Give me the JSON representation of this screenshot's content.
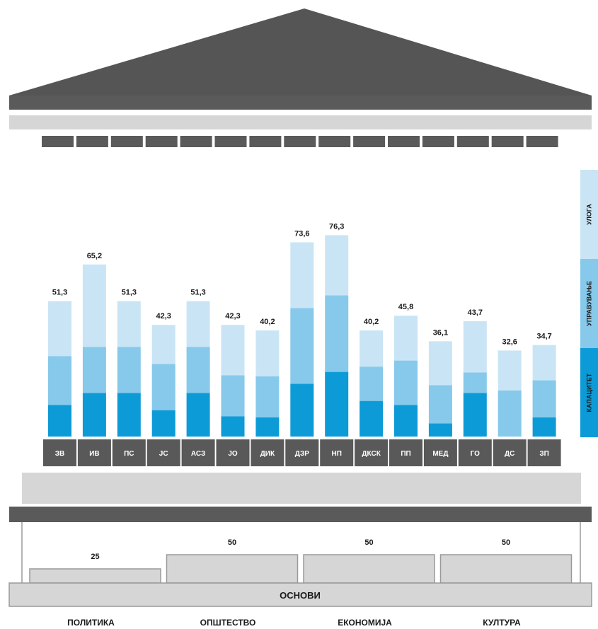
{
  "chart_data": {
    "type": "bar",
    "title": "",
    "xlabel": "",
    "ylabel": "",
    "ylim": [
      0,
      90
    ],
    "categories": [
      "ЗВ",
      "ИВ",
      "ПС",
      "ЈС",
      "АСЗ",
      "ЈО",
      "ДИК",
      "ДЗР",
      "НП",
      "ДКСК",
      "ПП",
      "МЕД",
      "ГО",
      "ДС",
      "ЗП"
    ],
    "totals": [
      "51,3",
      "65,2",
      "51,3",
      "42,3",
      "51,3",
      "42,3",
      "40,2",
      "73,6",
      "76,3",
      "40,2",
      "45,8",
      "36,1",
      "43,7",
      "32,6",
      "34,7"
    ],
    "values": [
      51.3,
      65.2,
      51.3,
      42.3,
      51.3,
      42.3,
      40.2,
      73.6,
      76.3,
      40.2,
      45.8,
      36.1,
      43.7,
      32.6,
      34.7
    ],
    "series": [
      {
        "name": "КАПАЦИТЕТ",
        "color": "#0d9bd7",
        "values": [
          12.0,
          16.5,
          16.5,
          10.0,
          16.5,
          7.7,
          7.3,
          20.0,
          24.5,
          13.5,
          12.0,
          5.0,
          16.5,
          0.0,
          7.3
        ]
      },
      {
        "name": "УПРАВУВАЊЕ",
        "color": "#86c9ea",
        "values": [
          18.5,
          17.5,
          17.5,
          17.5,
          17.5,
          15.5,
          15.5,
          28.7,
          29.0,
          13.0,
          16.8,
          14.5,
          7.8,
          17.5,
          14.0
        ]
      },
      {
        "name": "УЛОГА",
        "color": "#c9e5f5",
        "values": [
          20.8,
          31.2,
          17.3,
          14.8,
          17.3,
          19.1,
          17.4,
          24.9,
          22.8,
          13.7,
          17.0,
          16.6,
          19.4,
          15.1,
          13.4
        ]
      }
    ],
    "legend_position": "right",
    "grid": false
  },
  "foundation": {
    "label": "ОСНОВИ",
    "pillars": [
      {
        "name": "ПОЛИТИКА",
        "value": "25",
        "v": 25
      },
      {
        "name": "ОПШТЕСТВО",
        "value": "50",
        "v": 50
      },
      {
        "name": "ЕКОНОМИЈА",
        "value": "50",
        "v": 50
      },
      {
        "name": "КУЛТУРА",
        "value": "50",
        "v": 50
      }
    ]
  },
  "colors": {
    "roof": "#555555",
    "frieze": "#d6d6d6",
    "dark_band": "#5a5a5a",
    "label_box": "#595959",
    "base_fill": "#d6d6d6",
    "base_stroke": "#9a9a9a"
  }
}
